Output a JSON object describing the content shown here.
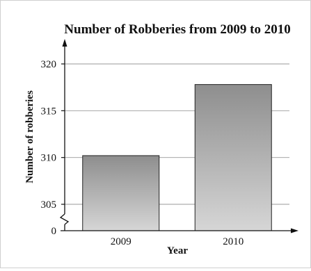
{
  "chart_data": {
    "type": "bar",
    "title": "Number of Robberies from 2009 to 2010",
    "xlabel": "Year",
    "ylabel": "Number of robberies",
    "categories": [
      "2009",
      "2010"
    ],
    "values": [
      310.2,
      317.8
    ],
    "ylim": [
      300,
      320
    ],
    "yticks": [
      305,
      310,
      315,
      320
    ],
    "y_zero_label": "0",
    "y_axis_break": true,
    "grid": true,
    "colors": {
      "bar_top": "#8e8e8e",
      "bar_bottom": "#d6d6d6",
      "grid": "#9a9a9a",
      "axis": "#111111"
    }
  }
}
